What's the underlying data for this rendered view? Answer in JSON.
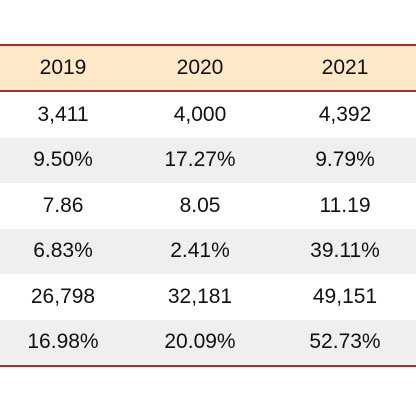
{
  "table": {
    "headers": [
      "2019",
      "2020",
      "2021"
    ],
    "rows": [
      [
        "3,411",
        "4,000",
        "4,392"
      ],
      [
        "9.50%",
        "17.27%",
        "9.79%"
      ],
      [
        "7.86",
        "8.05",
        "11.19"
      ],
      [
        "6.83%",
        "2.41%",
        "39.11%"
      ],
      [
        "26,798",
        "32,181",
        "49,151"
      ],
      [
        "16.98%",
        "20.09%",
        "52.73%"
      ]
    ]
  },
  "colors": {
    "rule": "#b3262a",
    "header_bg": "#fde8c7",
    "stripe_bg": "#efefef"
  }
}
